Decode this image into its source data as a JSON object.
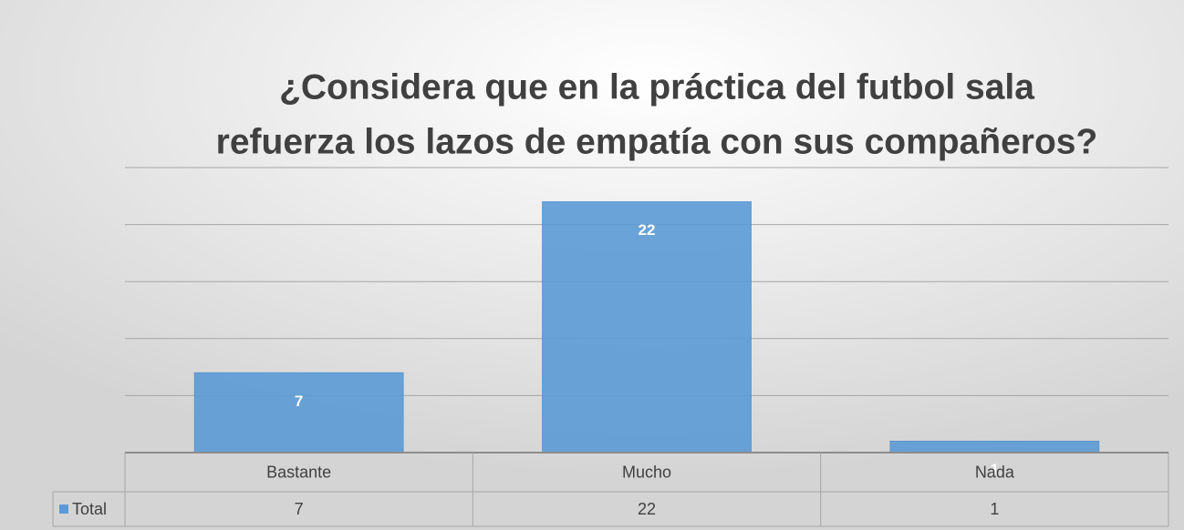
{
  "chart_data": {
    "type": "bar",
    "title": [
      "¿Considera que en la práctica del futbol sala",
      "refuerza los lazos de empatía con sus compañeros?"
    ],
    "categories": [
      "Bastante",
      "Mucho",
      "Nada"
    ],
    "series": [
      {
        "name": "Total",
        "color": "#5b9bd5",
        "values": [
          7,
          22,
          1
        ]
      }
    ],
    "ylim": [
      0,
      25
    ],
    "yticks": [
      0,
      5,
      10,
      15,
      20,
      25
    ],
    "grid": true,
    "data_table": true
  }
}
